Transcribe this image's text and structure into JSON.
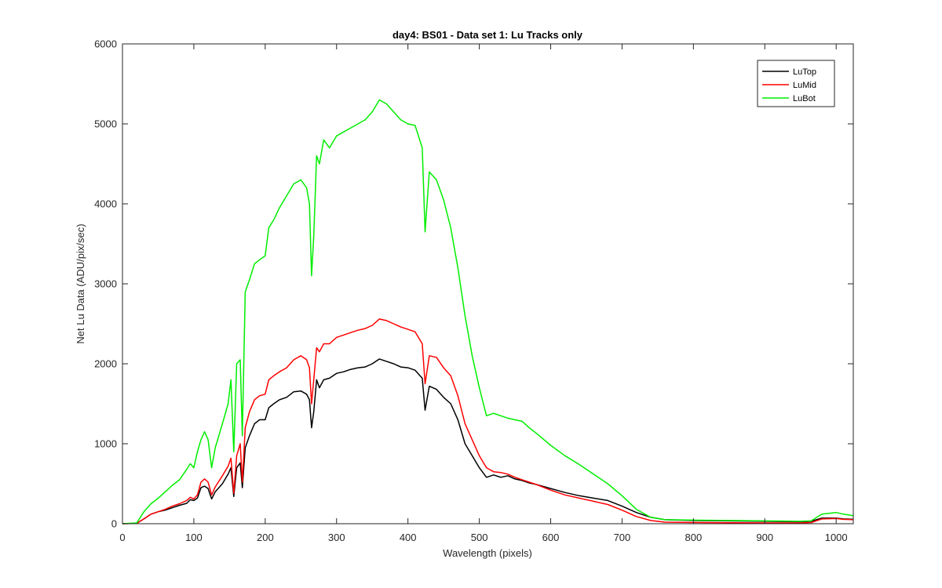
{
  "chart_data": {
    "type": "line",
    "title": "day4: BS01 - Data set 1: Lu Tracks only",
    "xlabel": "Wavelength (pixels)",
    "ylabel": "Net Lu Data (ADU/pix/sec)",
    "xlim": [
      0,
      1024
    ],
    "ylim": [
      0,
      6000
    ],
    "xticks": [
      0,
      100,
      200,
      300,
      400,
      500,
      600,
      700,
      800,
      900,
      1000
    ],
    "yticks": [
      0,
      1000,
      2000,
      3000,
      4000,
      5000,
      6000
    ],
    "xtick_labels": [
      "0",
      "100",
      "200",
      "300",
      "400",
      "500",
      "600",
      "700",
      "800",
      "900",
      "1000"
    ],
    "ytick_labels": [
      "0",
      "1000",
      "2000",
      "3000",
      "4000",
      "5000",
      "6000"
    ],
    "grid": false,
    "legend_position": "top-right",
    "series": [
      {
        "name": "LuTop",
        "color": "#000000",
        "points": [
          [
            0,
            0
          ],
          [
            20,
            5
          ],
          [
            30,
            60
          ],
          [
            40,
            120
          ],
          [
            50,
            150
          ],
          [
            60,
            170
          ],
          [
            70,
            200
          ],
          [
            80,
            230
          ],
          [
            90,
            255
          ],
          [
            95,
            300
          ],
          [
            100,
            290
          ],
          [
            105,
            320
          ],
          [
            110,
            450
          ],
          [
            115,
            470
          ],
          [
            120,
            440
          ],
          [
            125,
            310
          ],
          [
            130,
            400
          ],
          [
            140,
            500
          ],
          [
            148,
            620
          ],
          [
            152,
            700
          ],
          [
            156,
            340
          ],
          [
            160,
            700
          ],
          [
            165,
            760
          ],
          [
            168,
            450
          ],
          [
            172,
            950
          ],
          [
            178,
            1100
          ],
          [
            185,
            1250
          ],
          [
            192,
            1300
          ],
          [
            200,
            1300
          ],
          [
            205,
            1450
          ],
          [
            212,
            1500
          ],
          [
            220,
            1550
          ],
          [
            230,
            1580
          ],
          [
            240,
            1650
          ],
          [
            250,
            1660
          ],
          [
            258,
            1620
          ],
          [
            262,
            1550
          ],
          [
            265,
            1200
          ],
          [
            268,
            1400
          ],
          [
            272,
            1800
          ],
          [
            276,
            1700
          ],
          [
            282,
            1800
          ],
          [
            290,
            1820
          ],
          [
            300,
            1880
          ],
          [
            310,
            1900
          ],
          [
            320,
            1930
          ],
          [
            330,
            1950
          ],
          [
            340,
            1960
          ],
          [
            350,
            2000
          ],
          [
            360,
            2060
          ],
          [
            370,
            2030
          ],
          [
            380,
            2000
          ],
          [
            390,
            1960
          ],
          [
            400,
            1950
          ],
          [
            410,
            1920
          ],
          [
            420,
            1820
          ],
          [
            424,
            1420
          ],
          [
            430,
            1720
          ],
          [
            440,
            1680
          ],
          [
            450,
            1580
          ],
          [
            460,
            1500
          ],
          [
            470,
            1300
          ],
          [
            480,
            1000
          ],
          [
            490,
            850
          ],
          [
            500,
            700
          ],
          [
            510,
            580
          ],
          [
            520,
            610
          ],
          [
            530,
            580
          ],
          [
            540,
            600
          ],
          [
            550,
            560
          ],
          [
            560,
            540
          ],
          [
            570,
            510
          ],
          [
            580,
            490
          ],
          [
            600,
            440
          ],
          [
            620,
            390
          ],
          [
            640,
            350
          ],
          [
            660,
            320
          ],
          [
            680,
            290
          ],
          [
            700,
            220
          ],
          [
            720,
            140
          ],
          [
            740,
            80
          ],
          [
            760,
            50
          ],
          [
            800,
            40
          ],
          [
            850,
            35
          ],
          [
            900,
            30
          ],
          [
            950,
            25
          ],
          [
            965,
            30
          ],
          [
            980,
            70
          ],
          [
            1000,
            70
          ],
          [
            1010,
            60
          ],
          [
            1024,
            55
          ]
        ]
      },
      {
        "name": "LuMid",
        "color": "#ff0000",
        "points": [
          [
            0,
            0
          ],
          [
            20,
            5
          ],
          [
            30,
            60
          ],
          [
            40,
            120
          ],
          [
            50,
            150
          ],
          [
            60,
            180
          ],
          [
            70,
            220
          ],
          [
            80,
            250
          ],
          [
            90,
            290
          ],
          [
            95,
            330
          ],
          [
            100,
            310
          ],
          [
            105,
            360
          ],
          [
            110,
            520
          ],
          [
            115,
            560
          ],
          [
            120,
            520
          ],
          [
            125,
            360
          ],
          [
            130,
            460
          ],
          [
            140,
            600
          ],
          [
            148,
            720
          ],
          [
            152,
            820
          ],
          [
            156,
            380
          ],
          [
            160,
            850
          ],
          [
            165,
            1000
          ],
          [
            168,
            520
          ],
          [
            172,
            1200
          ],
          [
            178,
            1400
          ],
          [
            185,
            1550
          ],
          [
            192,
            1600
          ],
          [
            200,
            1620
          ],
          [
            205,
            1800
          ],
          [
            212,
            1850
          ],
          [
            220,
            1900
          ],
          [
            230,
            1950
          ],
          [
            240,
            2050
          ],
          [
            250,
            2100
          ],
          [
            258,
            2050
          ],
          [
            262,
            1950
          ],
          [
            265,
            1500
          ],
          [
            268,
            1800
          ],
          [
            272,
            2200
          ],
          [
            276,
            2150
          ],
          [
            282,
            2250
          ],
          [
            290,
            2250
          ],
          [
            300,
            2330
          ],
          [
            310,
            2360
          ],
          [
            320,
            2390
          ],
          [
            330,
            2420
          ],
          [
            340,
            2440
          ],
          [
            350,
            2480
          ],
          [
            360,
            2560
          ],
          [
            370,
            2540
          ],
          [
            380,
            2500
          ],
          [
            390,
            2460
          ],
          [
            400,
            2430
          ],
          [
            410,
            2400
          ],
          [
            420,
            2250
          ],
          [
            424,
            1750
          ],
          [
            430,
            2100
          ],
          [
            440,
            2080
          ],
          [
            450,
            1950
          ],
          [
            460,
            1850
          ],
          [
            470,
            1600
          ],
          [
            480,
            1250
          ],
          [
            490,
            1050
          ],
          [
            500,
            850
          ],
          [
            510,
            700
          ],
          [
            520,
            650
          ],
          [
            530,
            640
          ],
          [
            540,
            620
          ],
          [
            550,
            580
          ],
          [
            560,
            550
          ],
          [
            570,
            520
          ],
          [
            580,
            490
          ],
          [
            600,
            420
          ],
          [
            620,
            360
          ],
          [
            640,
            320
          ],
          [
            660,
            280
          ],
          [
            680,
            240
          ],
          [
            700,
            170
          ],
          [
            720,
            90
          ],
          [
            740,
            40
          ],
          [
            760,
            20
          ],
          [
            800,
            15
          ],
          [
            850,
            12
          ],
          [
            900,
            10
          ],
          [
            950,
            10
          ],
          [
            965,
            15
          ],
          [
            980,
            60
          ],
          [
            1000,
            65
          ],
          [
            1010,
            55
          ],
          [
            1024,
            50
          ]
        ]
      },
      {
        "name": "LuBot",
        "color": "#00ee00",
        "points": [
          [
            0,
            0
          ],
          [
            20,
            10
          ],
          [
            30,
            150
          ],
          [
            40,
            250
          ],
          [
            50,
            320
          ],
          [
            60,
            400
          ],
          [
            70,
            480
          ],
          [
            80,
            550
          ],
          [
            90,
            680
          ],
          [
            95,
            750
          ],
          [
            100,
            700
          ],
          [
            105,
            900
          ],
          [
            110,
            1050
          ],
          [
            115,
            1150
          ],
          [
            120,
            1050
          ],
          [
            125,
            700
          ],
          [
            130,
            950
          ],
          [
            140,
            1250
          ],
          [
            148,
            1500
          ],
          [
            152,
            1800
          ],
          [
            156,
            900
          ],
          [
            160,
            2000
          ],
          [
            165,
            2050
          ],
          [
            168,
            1100
          ],
          [
            172,
            2900
          ],
          [
            178,
            3050
          ],
          [
            185,
            3250
          ],
          [
            192,
            3300
          ],
          [
            200,
            3350
          ],
          [
            205,
            3700
          ],
          [
            212,
            3800
          ],
          [
            220,
            3950
          ],
          [
            230,
            4100
          ],
          [
            240,
            4250
          ],
          [
            250,
            4300
          ],
          [
            258,
            4200
          ],
          [
            262,
            4000
          ],
          [
            265,
            3100
          ],
          [
            268,
            3600
          ],
          [
            272,
            4600
          ],
          [
            276,
            4500
          ],
          [
            282,
            4800
          ],
          [
            290,
            4700
          ],
          [
            300,
            4850
          ],
          [
            310,
            4900
          ],
          [
            320,
            4950
          ],
          [
            330,
            5000
          ],
          [
            340,
            5050
          ],
          [
            350,
            5150
          ],
          [
            360,
            5300
          ],
          [
            370,
            5250
          ],
          [
            380,
            5150
          ],
          [
            390,
            5050
          ],
          [
            400,
            5000
          ],
          [
            410,
            4980
          ],
          [
            420,
            4700
          ],
          [
            424,
            3650
          ],
          [
            430,
            4400
          ],
          [
            440,
            4300
          ],
          [
            450,
            4050
          ],
          [
            460,
            3700
          ],
          [
            470,
            3200
          ],
          [
            480,
            2600
          ],
          [
            490,
            2100
          ],
          [
            500,
            1700
          ],
          [
            510,
            1350
          ],
          [
            520,
            1380
          ],
          [
            530,
            1350
          ],
          [
            540,
            1320
          ],
          [
            550,
            1300
          ],
          [
            560,
            1280
          ],
          [
            570,
            1200
          ],
          [
            580,
            1130
          ],
          [
            600,
            980
          ],
          [
            620,
            850
          ],
          [
            640,
            740
          ],
          [
            660,
            620
          ],
          [
            680,
            500
          ],
          [
            700,
            350
          ],
          [
            720,
            180
          ],
          [
            740,
            80
          ],
          [
            760,
            50
          ],
          [
            800,
            45
          ],
          [
            850,
            40
          ],
          [
            900,
            35
          ],
          [
            950,
            30
          ],
          [
            965,
            35
          ],
          [
            980,
            120
          ],
          [
            1000,
            140
          ],
          [
            1010,
            120
          ],
          [
            1024,
            100
          ]
        ]
      }
    ]
  }
}
